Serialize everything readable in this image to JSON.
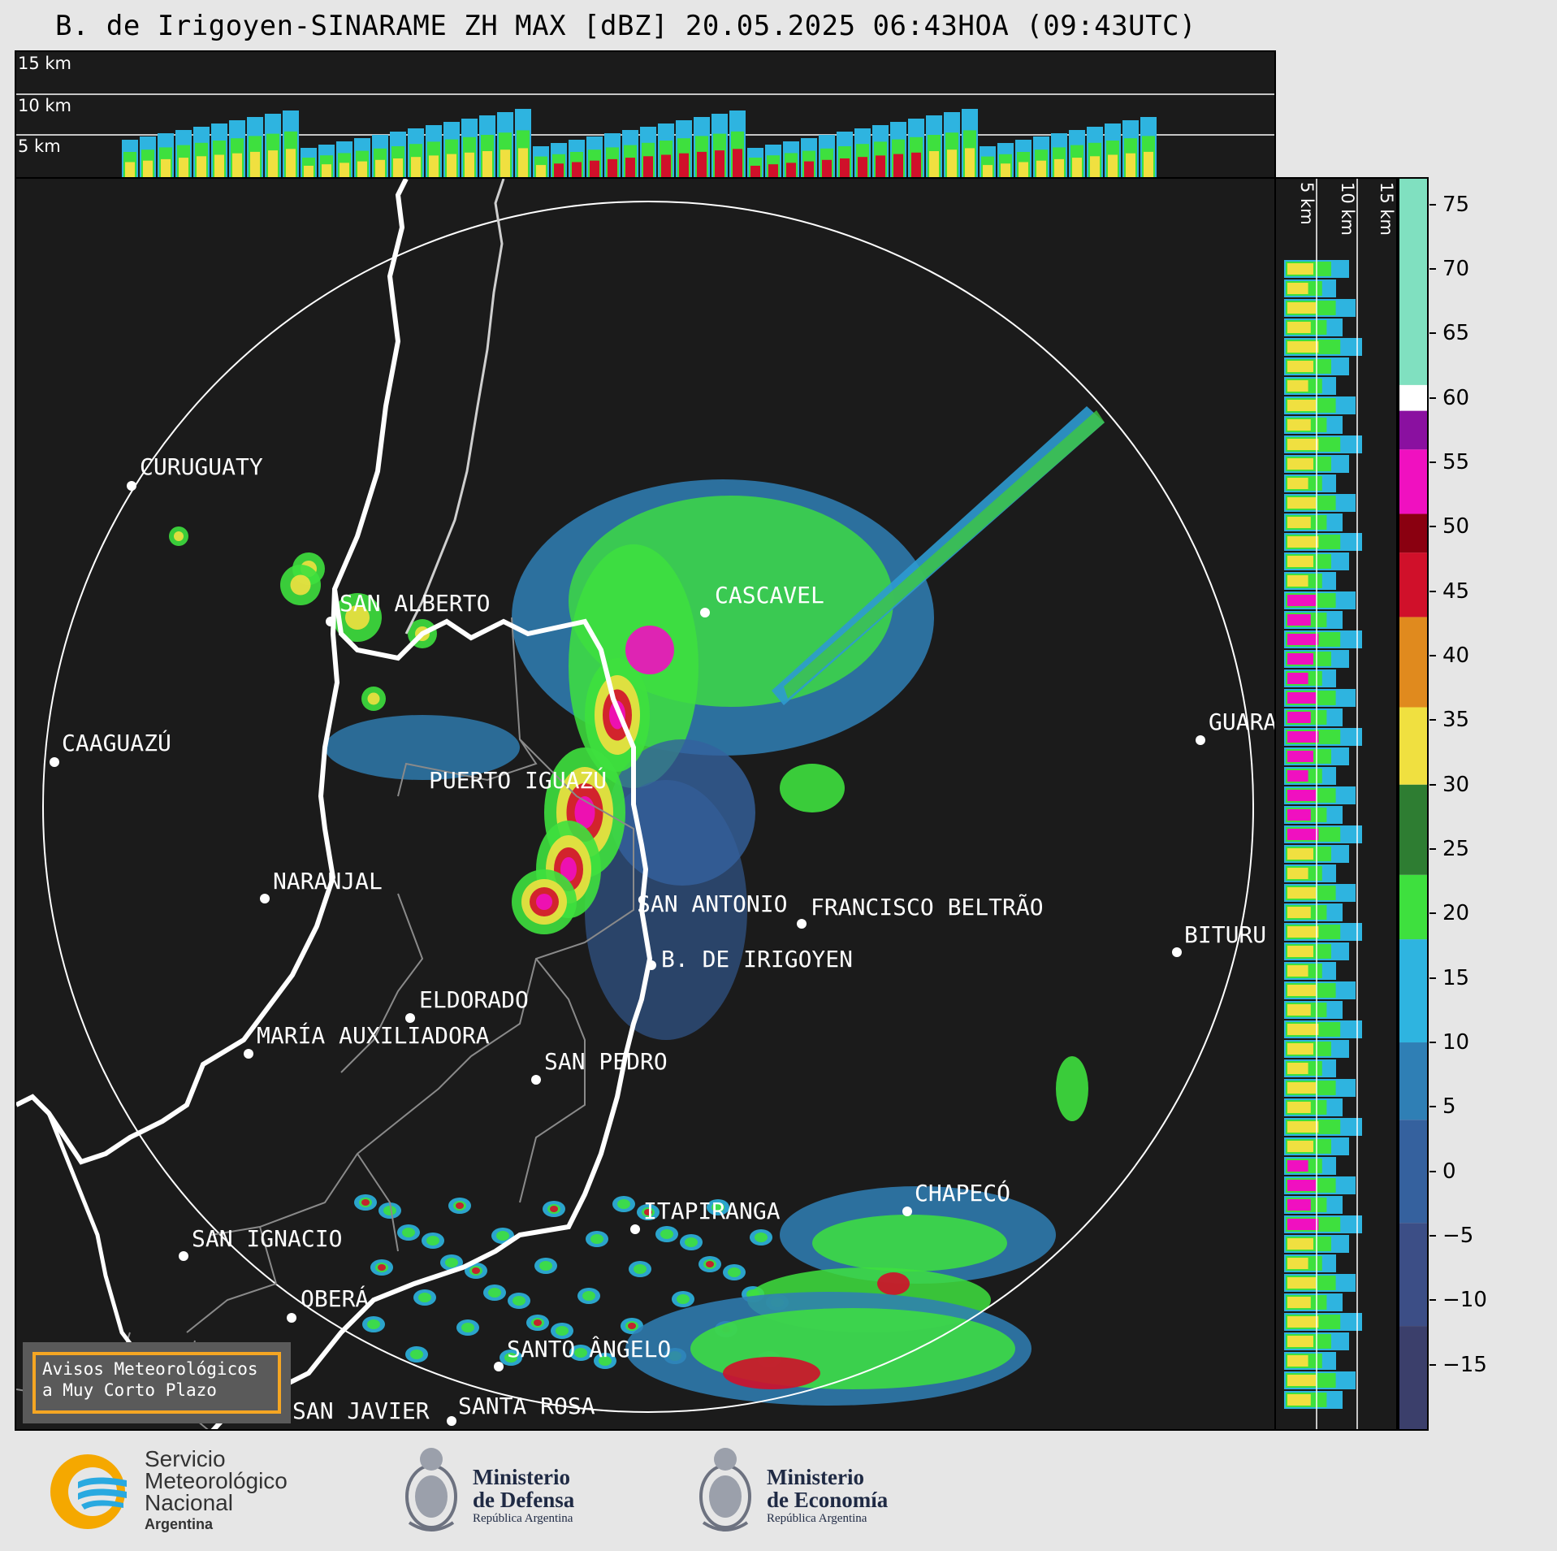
{
  "title": "B. de Irigoyen-SINARAME ZH MAX [dBZ] 20.05.2025 06:43HOA (09:43UTC)",
  "top_panel": {
    "height_labels": [
      "15 km",
      "10 km",
      "5 km"
    ]
  },
  "side_panel": {
    "height_labels": [
      "5 km",
      "10 km",
      "15 km"
    ]
  },
  "cities": [
    {
      "name": "CURUGUATY"
    },
    {
      "name": "SAN ALBERTO"
    },
    {
      "name": "CASCAVEL"
    },
    {
      "name": "CAAGUAZÚ"
    },
    {
      "name": "GUARA"
    },
    {
      "name": "PUERTO IGUAZÚ"
    },
    {
      "name": "NARANJAL"
    },
    {
      "name": "SAN ANTONIO"
    },
    {
      "name": "FRANCISCO BELTRÃO"
    },
    {
      "name": "B. DE IRIGOYEN"
    },
    {
      "name": "BITURU"
    },
    {
      "name": "ELDORADO"
    },
    {
      "name": "MARÍA AUXILIADORA"
    },
    {
      "name": "SAN PEDRO"
    },
    {
      "name": "CHAPECÓ"
    },
    {
      "name": "ITAPIRANGA"
    },
    {
      "name": "SAN IGNACIO"
    },
    {
      "name": "OBERÁ"
    },
    {
      "name": "SAN JAVIER"
    },
    {
      "name": "SANTA ROSA"
    },
    {
      "name": "SANTO ÂNGELO"
    }
  ],
  "warning_box": {
    "line1": "Avisos Meteorológicos",
    "line2": "a Muy Corto Plazo"
  },
  "colorbar": {
    "unit": "dBZ",
    "ticks": [
      "75",
      "70",
      "65",
      "60",
      "55",
      "50",
      "45",
      "40",
      "35",
      "30",
      "25",
      "20",
      "15",
      "10",
      "5",
      "0",
      "−5",
      "−10",
      "−15"
    ],
    "range": [
      -20,
      77
    ],
    "colors": {
      "low": "#3b3f6b",
      "mid_blue": "#2f7fb5",
      "cyan": "#2eb4e0",
      "green": "#3ee03e",
      "dark_green": "#2e7d32",
      "yellow": "#f0e040",
      "orange": "#e08a1e",
      "red": "#d0102a",
      "dark_red": "#8a0010",
      "magenta": "#f010c0",
      "purple": "#8a10a0",
      "white": "#ffffff",
      "mint": "#80e0c0"
    }
  },
  "logos": {
    "smn": {
      "line1": "Servicio",
      "line2": "Meteorológico",
      "line3": "Nacional",
      "line4": "Argentina"
    },
    "defensa": {
      "line1": "Ministerio",
      "line2": "de Defensa",
      "line3": "República Argentina"
    },
    "economia": {
      "line1": "Ministerio",
      "line2": "de Economía",
      "line3": "República Argentina"
    }
  }
}
